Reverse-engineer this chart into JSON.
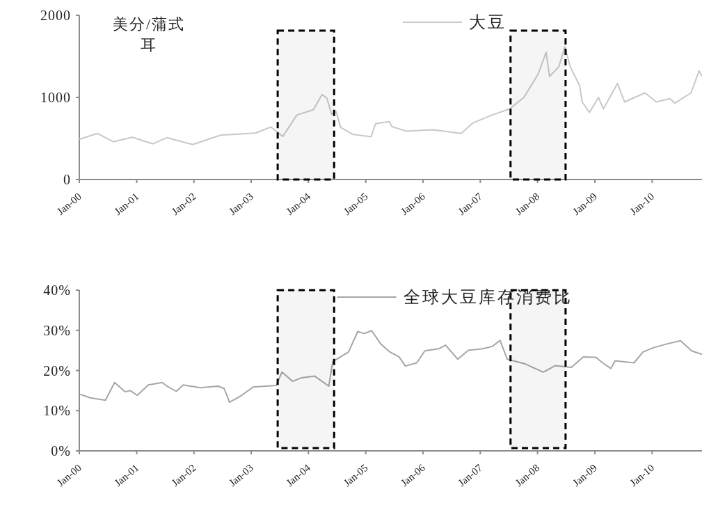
{
  "chart_data": [
    {
      "type": "line",
      "ylabel": "美分/蒲式耳",
      "legend": "top",
      "grid": false,
      "marker": "none",
      "line_style": "solid",
      "xlim": [
        "2000-01-01",
        "2010-11-15"
      ],
      "xticks": [
        {
          "value": "2000-01-01",
          "label": "Jan-00"
        },
        {
          "value": "2001-01-01",
          "label": "Jan-01"
        },
        {
          "value": "2002-01-01",
          "label": "Jan-02"
        },
        {
          "value": "2003-01-01",
          "label": "Jan-03"
        },
        {
          "value": "2004-01-01",
          "label": "Jan-04"
        },
        {
          "value": "2005-01-01",
          "label": "Jan-05"
        },
        {
          "value": "2006-01-01",
          "label": "Jan-06"
        },
        {
          "value": "2007-01-01",
          "label": "Jan-07"
        },
        {
          "value": "2008-01-01",
          "label": "Jan-08"
        },
        {
          "value": "2009-01-01",
          "label": "Jan-09"
        },
        {
          "value": "2010-01-01",
          "label": "Jan-10"
        }
      ],
      "ylim": [
        0,
        2000
      ],
      "yticks": [
        0,
        1000,
        2000
      ],
      "bands": [
        {
          "axis": "x",
          "from": "2003-06-19",
          "to": "2004-06-13",
          "color": "#000000"
        },
        {
          "axis": "x",
          "from": "2007-07-13",
          "to": "2008-06-28",
          "color": "#000000"
        }
      ],
      "series": [
        {
          "name": "大豆",
          "color": "#c8c8c8",
          "x": [
            "2000-01-01",
            "2000-04-24",
            "2000-08-05",
            "2000-12-03",
            "2001-04-14",
            "2001-07-12",
            "2001-12-24",
            "2002-06-19",
            "2003-01-28",
            "2003-05-07",
            "2003-07-22",
            "2003-10-19",
            "2004-02-01",
            "2004-03-28",
            "2004-04-28",
            "2004-05-28",
            "2004-06-25",
            "2004-07-25",
            "2004-10-10",
            "2005-02-04",
            "2005-03-04",
            "2005-06-01",
            "2005-06-15",
            "2005-09-13",
            "2006-03-07",
            "2006-09-01",
            "2006-11-16",
            "2007-03-16",
            "2007-07-07",
            "2007-10-06",
            "2008-01-04",
            "2008-02-25",
            "2008-03-18",
            "2008-05-15",
            "2008-06-24",
            "2008-07-28",
            "2008-09-25",
            "2008-10-12",
            "2008-11-27",
            "2009-01-24",
            "2009-02-24",
            "2009-05-25",
            "2009-07-09",
            "2009-11-16",
            "2010-01-28",
            "2010-04-25",
            "2010-05-25",
            "2010-09-06",
            "2010-10-28",
            "2010-11-15"
          ],
          "values": [
            490,
            562,
            460,
            515,
            435,
            510,
            425,
            540,
            565,
            640,
            525,
            785,
            850,
            1035,
            990,
            795,
            830,
            635,
            550,
            520,
            680,
            705,
            647,
            590,
            605,
            562,
            690,
            785,
            860,
            1000,
            1280,
            1550,
            1255,
            1370,
            1615,
            1370,
            1145,
            945,
            815,
            1000,
            860,
            1170,
            945,
            1055,
            945,
            985,
            930,
            1055,
            1325,
            1255
          ]
        }
      ]
    },
    {
      "type": "line",
      "legend": "top",
      "grid": false,
      "marker": "none",
      "line_style": "solid",
      "xlim": [
        "2000-01-01",
        "2010-11-15"
      ],
      "xticks": [
        {
          "value": "2000-01-01",
          "label": "Jan-00"
        },
        {
          "value": "2001-01-01",
          "label": "Jan-01"
        },
        {
          "value": "2002-01-01",
          "label": "Jan-02"
        },
        {
          "value": "2003-01-01",
          "label": "Jan-03"
        },
        {
          "value": "2004-01-01",
          "label": "Jan-04"
        },
        {
          "value": "2005-01-01",
          "label": "Jan-05"
        },
        {
          "value": "2006-01-01",
          "label": "Jan-06"
        },
        {
          "value": "2007-01-01",
          "label": "Jan-07"
        },
        {
          "value": "2008-01-01",
          "label": "Jan-08"
        },
        {
          "value": "2009-01-01",
          "label": "Jan-09"
        },
        {
          "value": "2010-01-01",
          "label": "Jan-10"
        }
      ],
      "ylim": [
        0,
        40
      ],
      "yticks": [
        {
          "value": 0,
          "label": "0%"
        },
        {
          "value": 10,
          "label": "10%"
        },
        {
          "value": 20,
          "label": "20%"
        },
        {
          "value": 30,
          "label": "30%"
        },
        {
          "value": 40,
          "label": "40%"
        }
      ],
      "bands": [
        {
          "axis": "x",
          "from": "2003-06-19",
          "to": "2004-06-13",
          "color": "#000000"
        },
        {
          "axis": "x",
          "from": "2007-07-13",
          "to": "2008-06-28",
          "color": "#000000"
        }
      ],
      "series": [
        {
          "name": "全球大豆库存消费比",
          "color": "#a6a6a6",
          "x": [
            "2000-01-05",
            "2000-03-10",
            "2000-06-16",
            "2000-08-13",
            "2000-10-19",
            "2000-11-21",
            "2001-01-04",
            "2001-03-16",
            "2001-06-13",
            "2001-07-13",
            "2001-09-10",
            "2001-10-25",
            "2002-02-10",
            "2002-06-04",
            "2002-07-13",
            "2002-08-16",
            "2002-11-01",
            "2003-01-13",
            "2003-06-10",
            "2003-07-16",
            "2003-09-22",
            "2003-11-19",
            "2004-02-10",
            "2004-05-10",
            "2004-06-04",
            "2004-09-13",
            "2004-11-10",
            "2004-12-22",
            "2005-02-07",
            "2005-04-07",
            "2005-06-04",
            "2005-08-01",
            "2005-09-10",
            "2005-11-22",
            "2006-01-13",
            "2006-04-10",
            "2006-05-25",
            "2006-08-10",
            "2006-10-16",
            "2007-01-16",
            "2007-03-19",
            "2007-05-07",
            "2007-06-22",
            "2007-10-10",
            "2008-02-07",
            "2008-04-22",
            "2008-08-04",
            "2008-10-19",
            "2009-01-07",
            "2009-02-19",
            "2009-04-13",
            "2009-05-10",
            "2009-09-07",
            "2009-11-04",
            "2010-01-10",
            "2010-04-04",
            "2010-07-01",
            "2010-09-10",
            "2010-11-15"
          ],
          "values": [
            14.1,
            13.2,
            12.6,
            17.0,
            14.7,
            15.0,
            13.8,
            16.4,
            17.0,
            16.1,
            14.8,
            16.4,
            15.7,
            16.1,
            15.5,
            12.1,
            13.8,
            15.9,
            16.3,
            19.6,
            17.3,
            18.2,
            18.6,
            16.1,
            22.2,
            24.6,
            29.7,
            29.2,
            29.9,
            26.6,
            24.6,
            23.4,
            21.1,
            21.9,
            24.9,
            25.4,
            26.3,
            22.8,
            25.0,
            25.4,
            26.0,
            27.5,
            22.8,
            21.7,
            19.6,
            21.2,
            20.8,
            23.4,
            23.3,
            21.9,
            20.5,
            22.4,
            21.9,
            24.6,
            25.7,
            26.6,
            27.4,
            24.9,
            24.0
          ]
        }
      ]
    }
  ]
}
